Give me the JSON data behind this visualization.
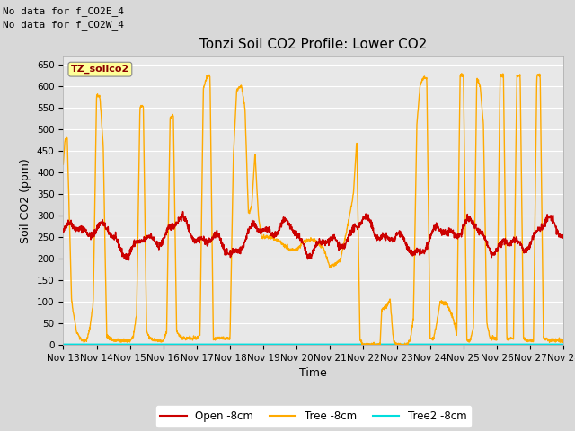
{
  "title": "Tonzi Soil CO2 Profile: Lower CO2",
  "xlabel": "Time",
  "ylabel": "Soil CO2 (ppm)",
  "no_data_text": [
    "No data for f_CO2E_4",
    "No data for f_CO2W_4"
  ],
  "ylim": [
    0,
    670
  ],
  "yticks": [
    0,
    50,
    100,
    150,
    200,
    250,
    300,
    350,
    400,
    450,
    500,
    550,
    600,
    650
  ],
  "xtick_labels": [
    "Nov 13",
    "Nov 14",
    "Nov 15",
    "Nov 16",
    "Nov 17",
    "Nov 18",
    "Nov 19",
    "Nov 20",
    "Nov 21",
    "Nov 22",
    "Nov 23",
    "Nov 24",
    "Nov 25",
    "Nov 26",
    "Nov 27",
    "Nov 28"
  ],
  "fig_bg_color": "#d8d8d8",
  "plot_bg_color": "#e8e8e8",
  "grid_color": "#ffffff",
  "legend_box_color": "#ffff99",
  "legend_box_text": "TZ_soilco2",
  "open_color": "#cc0000",
  "tree_color": "#ffaa00",
  "tree2_color": "#00dddd",
  "legend_entries": [
    "Open -8cm",
    "Tree -8cm",
    "Tree2 -8cm"
  ],
  "title_fontsize": 11,
  "axis_label_fontsize": 9,
  "tick_fontsize": 7.5,
  "nodata_fontsize": 8,
  "legend_fontsize": 8.5
}
